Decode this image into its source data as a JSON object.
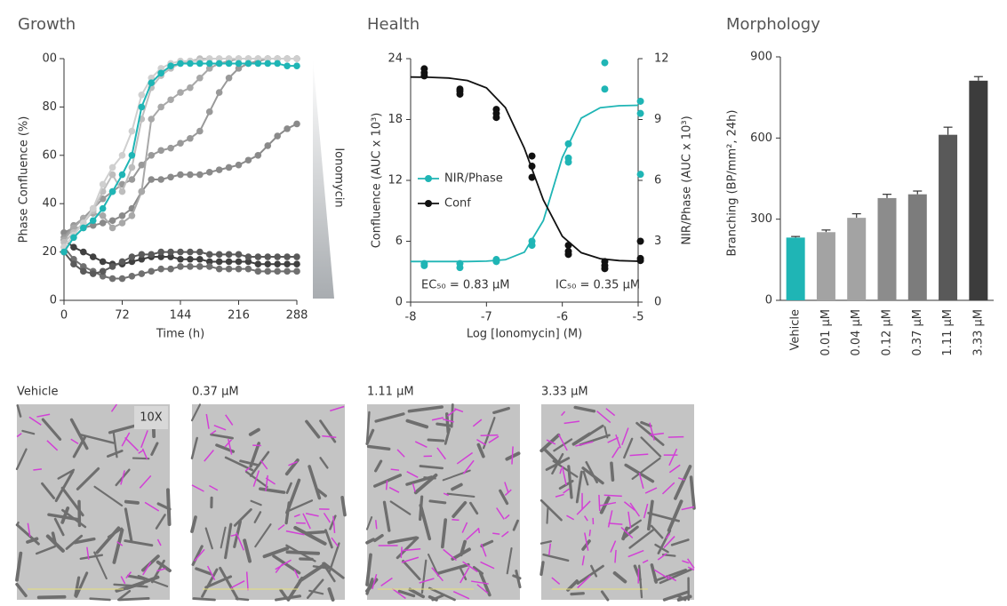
{
  "chart_data": [
    {
      "type": "line",
      "title": "Growth",
      "xlabel": "Time (h)",
      "ylabel": "Phase Confluence (%)",
      "annotation": "Ionomycin",
      "x": [
        0,
        12,
        24,
        36,
        48,
        60,
        72,
        84,
        96,
        108,
        120,
        132,
        144,
        156,
        168,
        180,
        192,
        204,
        216,
        228,
        240,
        252,
        264,
        276,
        288
      ],
      "xlim": [
        0,
        288
      ],
      "xticks": [
        0,
        72,
        144,
        216,
        288
      ],
      "ylim": [
        0,
        100
      ],
      "yticks": [
        0,
        20,
        40,
        60,
        80,
        {
          "value": 100,
          "label": "00"
        }
      ],
      "series": [
        {
          "color": "#1fb5b5",
          "values": [
            20,
            26,
            30,
            33,
            38,
            45,
            52,
            60,
            80,
            90,
            94,
            97,
            98,
            98,
            98,
            98,
            98,
            98,
            98,
            98,
            98,
            98,
            98,
            97,
            97
          ]
        },
        {
          "color": "#cfcfcf",
          "values": [
            22,
            27,
            32,
            38,
            48,
            55,
            60,
            70,
            85,
            92,
            96,
            98,
            99,
            99,
            99,
            100,
            100,
            100,
            100,
            100,
            100,
            100,
            100,
            100,
            100
          ]
        },
        {
          "color": "#bdbdbd",
          "values": [
            24,
            28,
            32,
            37,
            45,
            52,
            45,
            55,
            75,
            88,
            93,
            96,
            98,
            99,
            100,
            100,
            100,
            100,
            100,
            100,
            100,
            100,
            100,
            100,
            100
          ]
        },
        {
          "color": "#a8a8a8",
          "values": [
            25,
            30,
            34,
            36,
            35,
            30,
            32,
            35,
            45,
            75,
            80,
            83,
            86,
            88,
            92,
            96,
            98,
            99,
            100,
            100,
            100,
            100,
            100,
            100,
            100
          ]
        },
        {
          "color": "#999999",
          "values": [
            26,
            31,
            34,
            38,
            42,
            45,
            48,
            50,
            56,
            60,
            62,
            63,
            65,
            67,
            70,
            78,
            86,
            92,
            96,
            98,
            99,
            100,
            100,
            100,
            100
          ]
        },
        {
          "color": "#8a8a8a",
          "values": [
            28,
            30,
            30,
            31,
            32,
            33,
            35,
            38,
            45,
            50,
            50,
            51,
            52,
            52,
            52,
            53,
            54,
            55,
            56,
            58,
            60,
            64,
            68,
            71,
            73
          ]
        },
        {
          "color": "#5a5a5a",
          "values": [
            20,
            15,
            12,
            11,
            12,
            14,
            16,
            18,
            19,
            19,
            20,
            20,
            20,
            20,
            20,
            19,
            19,
            19,
            19,
            18,
            18,
            18,
            18,
            18,
            18
          ]
        },
        {
          "color": "#707070",
          "values": [
            22,
            17,
            14,
            12,
            10,
            9,
            9,
            10,
            11,
            12,
            13,
            13,
            14,
            14,
            14,
            14,
            13,
            13,
            13,
            13,
            12,
            12,
            12,
            12,
            12
          ]
        },
        {
          "color": "#404040",
          "values": [
            25,
            22,
            20,
            18,
            16,
            15,
            15,
            16,
            17,
            18,
            18,
            18,
            17,
            17,
            17,
            16,
            16,
            16,
            16,
            16,
            15,
            15,
            15,
            15,
            15
          ]
        }
      ]
    },
    {
      "type": "scatter",
      "title": "Health",
      "xlabel": "Log [Ionomycin] (M)",
      "ylabel": "Confluence (AUC x 10³)",
      "y2label": "NIR/Phase (AUC x 10³)",
      "xlim": [
        -8,
        -5
      ],
      "xticks": [
        -8,
        -7,
        -6,
        -5
      ],
      "ylim": [
        0,
        24
      ],
      "yticks": [
        0,
        6,
        12,
        18,
        24
      ],
      "y2lim": [
        0,
        12
      ],
      "y2ticks": [
        0,
        3,
        6,
        9,
        12
      ],
      "annotations": [
        "EC₅₀ = 0.83 µM",
        "IC₅₀ = 0.35 µM"
      ],
      "series": [
        {
          "name": "NIR/Phase",
          "color": "#1fb5b5",
          "axis": "y2",
          "x": [
            -7.82,
            -7.82,
            -7.35,
            -7.35,
            -6.87,
            -6.87,
            -6.4,
            -6.4,
            -5.92,
            -5.92,
            -5.92,
            -5.44,
            -5.44,
            -4.97,
            -4.97,
            -4.97
          ],
          "values": [
            1.9,
            1.8,
            1.9,
            1.7,
            2.1,
            2.0,
            3.0,
            2.8,
            7.8,
            7.1,
            6.9,
            11.8,
            10.5,
            9.9,
            9.3,
            6.3
          ],
          "fit_x": [
            -8,
            -7.75,
            -7.5,
            -7.25,
            -7,
            -6.75,
            -6.5,
            -6.25,
            -6,
            -5.75,
            -5.5,
            -5.25,
            -5
          ],
          "fit_values": [
            2.0,
            2.0,
            2.0,
            2.0,
            2.02,
            2.09,
            2.46,
            4.02,
            7.13,
            9.07,
            9.58,
            9.68,
            9.7
          ]
        },
        {
          "name": "Conf",
          "color": "#111111",
          "axis": "y",
          "x": [
            -7.82,
            -7.82,
            -7.82,
            -7.35,
            -7.35,
            -7.35,
            -6.87,
            -6.87,
            -6.87,
            -6.4,
            -6.4,
            -6.4,
            -5.92,
            -5.92,
            -5.92,
            -5.44,
            -5.44,
            -5.44,
            -4.97,
            -4.97,
            -4.97
          ],
          "values": [
            23.0,
            22.6,
            22.3,
            21.0,
            20.8,
            20.5,
            19.0,
            18.6,
            18.2,
            14.4,
            13.4,
            12.3,
            5.6,
            5.0,
            4.7,
            4.0,
            3.6,
            3.3,
            6.0,
            4.3,
            4.1
          ],
          "fit_x": [
            -8,
            -7.75,
            -7.5,
            -7.25,
            -7,
            -6.75,
            -6.5,
            -6.25,
            -6,
            -5.75,
            -5.5,
            -5.25,
            -5
          ],
          "fit_values": [
            22.19,
            22.16,
            22.09,
            21.84,
            21.12,
            19.17,
            15.16,
            10.07,
            6.49,
            4.87,
            4.28,
            4.09,
            4.03
          ]
        }
      ]
    },
    {
      "type": "bar",
      "title": "Morphology",
      "ylabel": "Branching (BP/mm², 24h)",
      "categories": [
        "Vehicle",
        "0.01 µM",
        "0.04 µM",
        "0.12 µM",
        "0.37 µM",
        "1.11 µM",
        "3.33 µM"
      ],
      "values": [
        232,
        252,
        305,
        378,
        392,
        612,
        812
      ],
      "errors": [
        4,
        8,
        15,
        14,
        12,
        28,
        15
      ],
      "colors": [
        "#1fb5b5",
        "#a3a3a3",
        "#a3a3a3",
        "#8c8c8c",
        "#7c7c7c",
        "#595959",
        "#3c3c3c"
      ],
      "ylim": [
        0,
        900
      ],
      "yticks": [
        0,
        300,
        600,
        900
      ]
    }
  ],
  "images": [
    {
      "label": "Vehicle",
      "badge": "10X"
    },
    {
      "label": "0.37 µM"
    },
    {
      "label": "1.11 µM"
    },
    {
      "label": "3.33 µM"
    }
  ]
}
